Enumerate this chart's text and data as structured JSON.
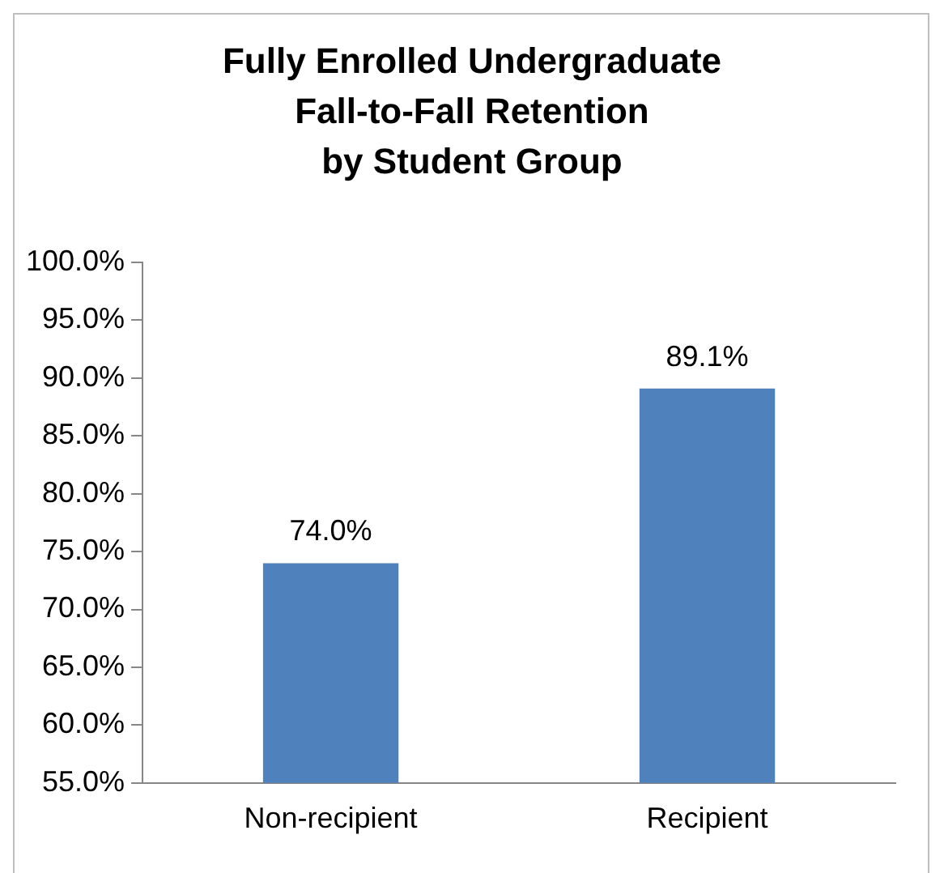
{
  "chart_data": {
    "type": "bar",
    "title": "Fully Enrolled Undergraduate\nFall-to-Fall Retention\nby Student Group",
    "categories": [
      "Non-recipient",
      "Recipient"
    ],
    "values": [
      74.0,
      89.1
    ],
    "value_labels": [
      "74.0%",
      "89.1%"
    ],
    "color": "#4f81bd",
    "ylim": [
      55,
      100
    ],
    "yticks": [
      {
        "value": 55,
        "label": "55.0%"
      },
      {
        "value": 60,
        "label": "60.0%"
      },
      {
        "value": 65,
        "label": "65.0%"
      },
      {
        "value": 70,
        "label": "70.0%"
      },
      {
        "value": 75,
        "label": "75.0%"
      },
      {
        "value": 80,
        "label": "80.0%"
      },
      {
        "value": 85,
        "label": "85.0%"
      },
      {
        "value": 90,
        "label": "90.0%"
      },
      {
        "value": 95,
        "label": "95.0%"
      },
      {
        "value": 100,
        "label": "100.0%"
      }
    ],
    "grid": false,
    "legend": false
  }
}
